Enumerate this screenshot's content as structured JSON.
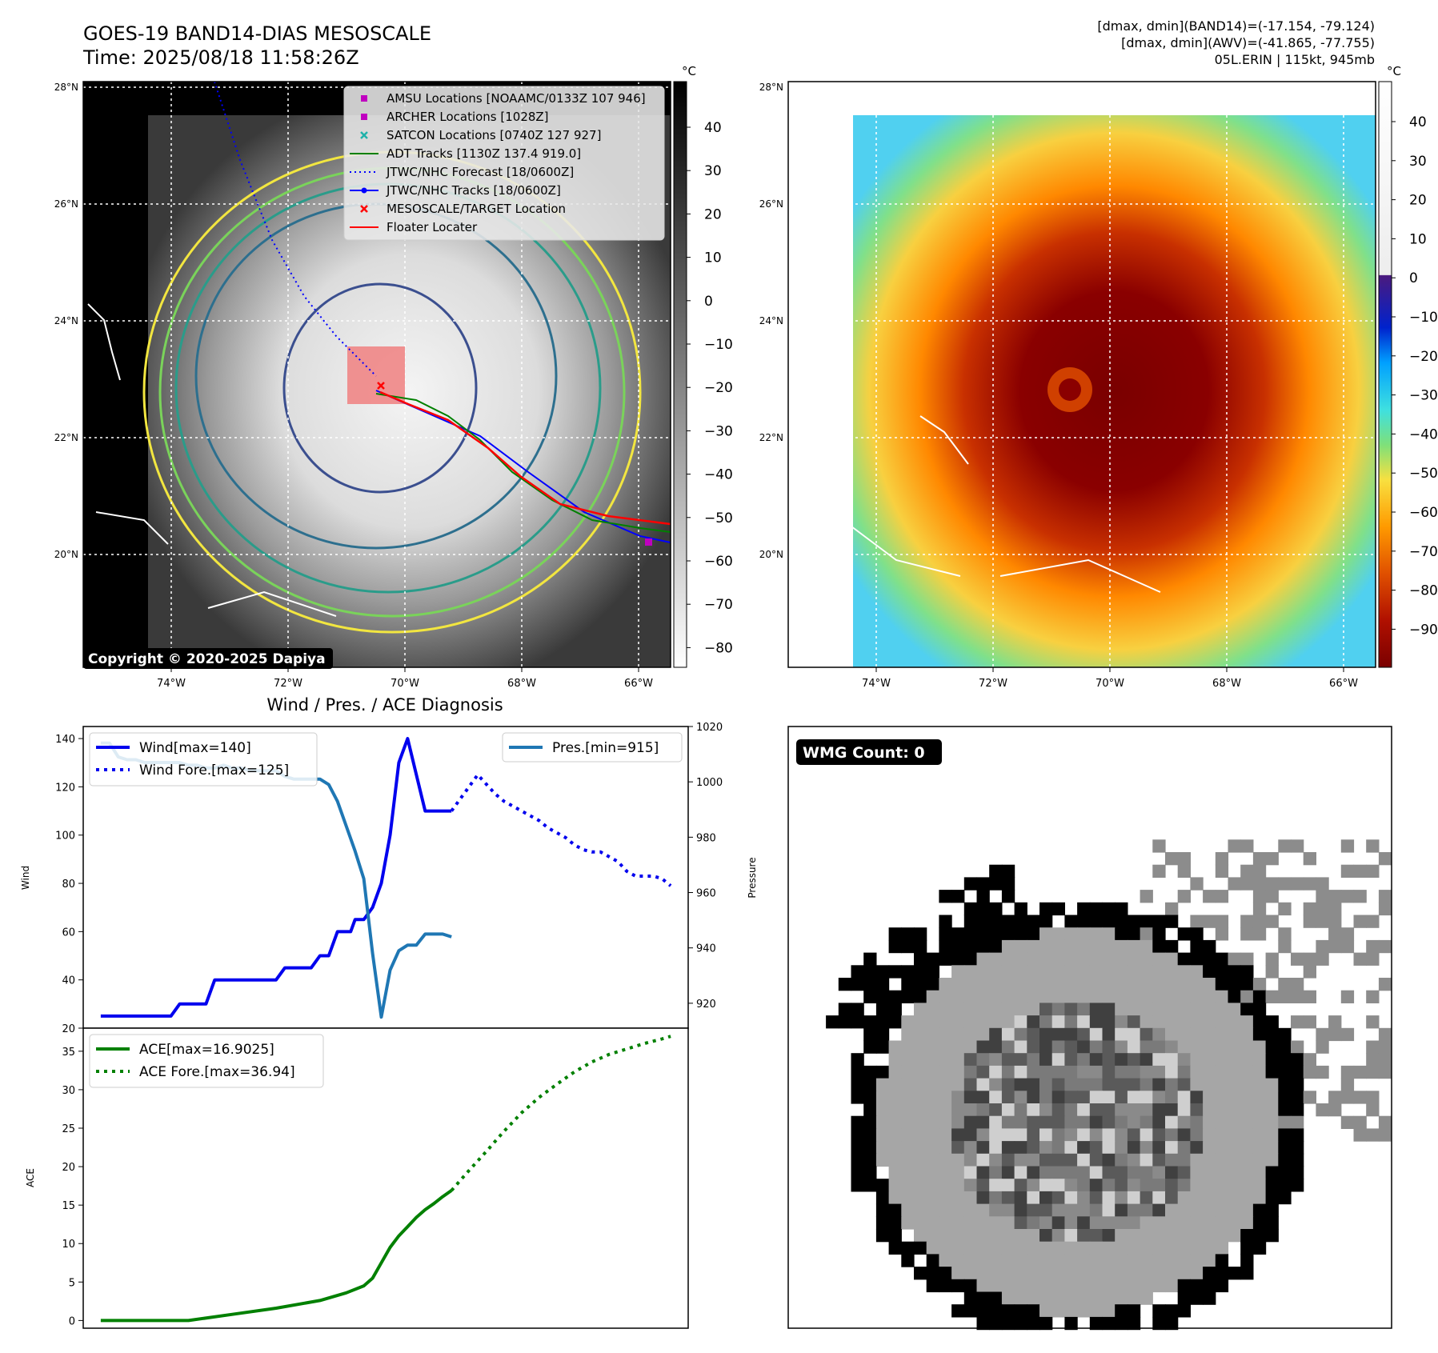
{
  "header": {
    "title": "GOES-19 BAND14-DIAS MESOSCALE",
    "time": "Time: 2025/08/18 11:58:26Z",
    "stats_band14": "[dmax, dmin](BAND14)=(-17.154, -79.124)",
    "stats_awv": "[dmax, dmin](AWV)=(-41.865, -77.755)",
    "storm": "05L.ERIN | 115kt, 945mb"
  },
  "copyright": "Copyright © 2020-2025 Dapiya",
  "wmg_label": "WMG Count: 0",
  "lat_ticks": [
    "28°N",
    "26°N",
    "24°N",
    "22°N",
    "20°N"
  ],
  "lon_ticks": [
    "74°W",
    "72°W",
    "70°W",
    "68°W",
    "66°W"
  ],
  "colorbar_left": {
    "unit": "°C",
    "ticks": [
      "40",
      "30",
      "20",
      "10",
      "0",
      "−10",
      "−20",
      "−30",
      "−40",
      "−50",
      "−60",
      "−70",
      "−80"
    ]
  },
  "colorbar_right": {
    "unit": "°C",
    "ticks": [
      "40",
      "30",
      "20",
      "10",
      "0",
      "−10",
      "−20",
      "−30",
      "−40",
      "−50",
      "−60",
      "−70",
      "−80",
      "−90"
    ]
  },
  "map_legend": [
    {
      "label": "AMSU Locations [NOAAMC/0133Z 107 946]",
      "marker": "square",
      "color": "#c000c0"
    },
    {
      "label": "ARCHER Locations [1028Z]",
      "marker": "square",
      "color": "#c000c0"
    },
    {
      "label": "SATCON Locations [0740Z 127 927]",
      "marker": "x",
      "color": "#20b2aa"
    },
    {
      "label": "ADT Tracks [1130Z 137.4 919.0]",
      "marker": "line",
      "color": "#008000"
    },
    {
      "label": "JTWC/NHC Forecast [18/0600Z]",
      "marker": "dotted",
      "color": "#0000ff"
    },
    {
      "label": "JTWC/NHC Tracks [18/0600Z]",
      "marker": "line-dot",
      "color": "#0000ff"
    },
    {
      "label": "MESOSCALE/TARGET Location",
      "marker": "x",
      "color": "#ff0000"
    },
    {
      "label": "Floater Locater",
      "marker": "line",
      "color": "#ff0000"
    }
  ],
  "chart_data": [
    {
      "type": "line",
      "title": "Wind / Pres. / ACE Diagnosis",
      "ylabel": "Wind",
      "y2label": "Pressure",
      "ylim": [
        20,
        145
      ],
      "y2lim": [
        911,
        1020
      ],
      "yticks": [
        "140",
        "120",
        "100",
        "80",
        "60",
        "40",
        "20"
      ],
      "y2ticks": [
        "1020",
        "1000",
        "980",
        "960",
        "940",
        "920"
      ],
      "legend": [
        "Wind[max=140]",
        "Wind Fore.[max=125]",
        "Pres.[min=915]"
      ],
      "series": [
        {
          "name": "Wind[max=140]",
          "style": "solid",
          "color": "#0000ee",
          "axis": "left",
          "x": [
            0,
            4,
            8,
            10,
            12,
            16,
            18,
            20,
            22,
            24,
            26,
            28,
            32,
            34,
            36,
            38,
            40,
            42,
            44,
            46,
            48,
            50,
            52,
            54,
            56,
            57,
            58,
            60,
            62,
            64,
            66,
            68,
            70,
            72,
            74,
            76,
            78,
            80
          ],
          "y": [
            25,
            25,
            25,
            25,
            25,
            25,
            30,
            30,
            30,
            30,
            40,
            40,
            40,
            40,
            40,
            40,
            40,
            45,
            45,
            45,
            45,
            50,
            50,
            60,
            60,
            60,
            65,
            65,
            70,
            80,
            100,
            130,
            140,
            125,
            110,
            110,
            110,
            110
          ]
        },
        {
          "name": "Wind Fore.[max=125]",
          "style": "dotted",
          "color": "#0000ee",
          "axis": "left",
          "x": [
            80,
            82,
            84,
            86,
            88,
            90,
            92,
            94,
            96,
            98,
            100,
            102,
            104,
            106,
            108,
            110,
            112,
            114,
            116,
            118,
            120,
            122,
            124,
            126,
            128,
            130
          ],
          "y": [
            110,
            115,
            120,
            125,
            121,
            117,
            114,
            112,
            110,
            108,
            106,
            103,
            101,
            99,
            96,
            94,
            93,
            93,
            91,
            89,
            85,
            83,
            83,
            83,
            82,
            79
          ]
        },
        {
          "name": "Pres.[min=915]",
          "style": "solid",
          "color": "#1f77b4",
          "axis": "right",
          "x": [
            0,
            2,
            4,
            6,
            8,
            10,
            12,
            14,
            16,
            18,
            20,
            22,
            24,
            26,
            28,
            30,
            32,
            34,
            36,
            38,
            40,
            42,
            44,
            46,
            48,
            50,
            52,
            54,
            56,
            58,
            60,
            62,
            64,
            66,
            68,
            70,
            72,
            74,
            76,
            78,
            80
          ],
          "y": [
            1014,
            1014,
            1009,
            1008,
            1008,
            1007,
            1007,
            1007,
            1007,
            1007,
            1006,
            1006,
            1005,
            1005,
            1006,
            1005,
            1005,
            1004,
            1004,
            1004,
            1004,
            1002,
            1001,
            1001,
            1001,
            1001,
            999,
            993,
            984,
            975,
            965,
            938,
            915,
            932,
            939,
            941,
            941,
            945,
            945,
            945,
            944
          ]
        }
      ]
    },
    {
      "type": "line",
      "ylabel": "ACE",
      "ylim": [
        -1,
        38
      ],
      "yticks": [
        "35",
        "30",
        "25",
        "20",
        "15",
        "10",
        "5",
        "0"
      ],
      "legend": [
        "ACE[max=16.9025]",
        "ACE Fore.[max=36.94]"
      ],
      "series": [
        {
          "name": "ACE[max=16.9025]",
          "style": "solid",
          "color": "#008000",
          "x": [
            0,
            10,
            20,
            30,
            40,
            50,
            56,
            60,
            62,
            64,
            66,
            68,
            70,
            72,
            74,
            76,
            78,
            80
          ],
          "y": [
            0,
            0,
            0,
            0.8,
            1.6,
            2.6,
            3.6,
            4.5,
            5.5,
            7.5,
            9.5,
            11,
            12.2,
            13.4,
            14.4,
            15.2,
            16.1,
            16.9
          ]
        },
        {
          "name": "ACE Fore.[max=36.94]",
          "style": "dotted",
          "color": "#008000",
          "x": [
            80,
            84,
            88,
            92,
            96,
            100,
            104,
            108,
            112,
            116,
            120,
            124,
            128,
            130
          ],
          "y": [
            16.9,
            19.5,
            22,
            24.6,
            27,
            29,
            30.7,
            32.3,
            33.6,
            34.6,
            35.3,
            36.0,
            36.6,
            36.94
          ]
        }
      ]
    }
  ]
}
